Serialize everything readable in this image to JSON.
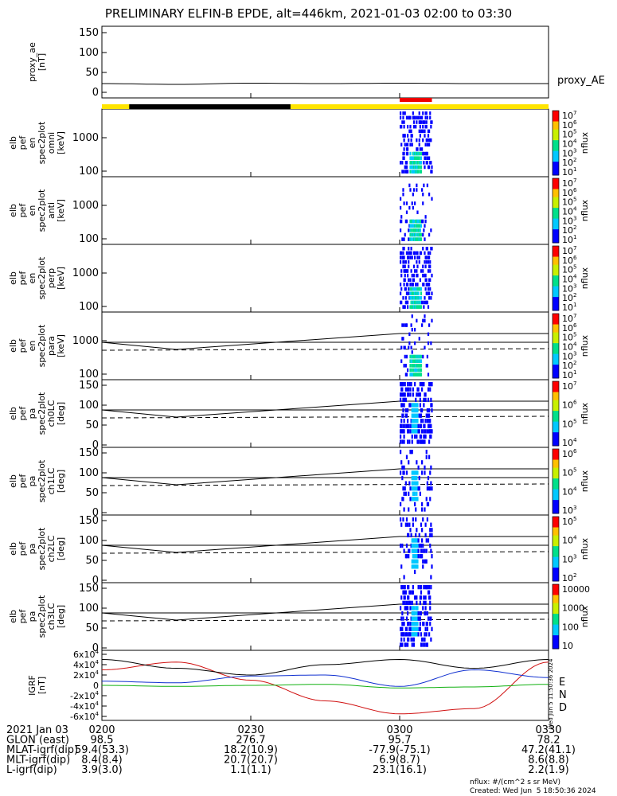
{
  "title": "PRELIMINARY ELFIN-B EPDE, alt=446km, 2021-01-03 02:00 to 03:30",
  "panels": [
    {
      "id": "proxy_ae",
      "ylabel": [
        "proxy_ae",
        "[nT]"
      ],
      "yticks": [
        "150",
        "100",
        "50",
        "0"
      ],
      "side_label": "proxy_AE"
    },
    {
      "id": "omni",
      "ylabel": [
        "elb",
        "pef",
        "en",
        "spec2plot",
        "omni",
        "[keV]"
      ],
      "yticks": [
        "1000",
        "100"
      ],
      "cbar_unit": "nflux",
      "cbar_ticks": [
        "10^7",
        "10^6",
        "10^5",
        "10^4",
        "10^3",
        "10^2",
        "10^1"
      ]
    },
    {
      "id": "anti",
      "ylabel": [
        "elb",
        "pef",
        "en",
        "spec2plot",
        "anti",
        "[keV]"
      ],
      "yticks": [
        "1000",
        "100"
      ],
      "cbar_unit": "nflux",
      "cbar_ticks": [
        "10^7",
        "10^6",
        "10^5",
        "10^4",
        "10^3",
        "10^2",
        "10^1"
      ]
    },
    {
      "id": "perp",
      "ylabel": [
        "elb",
        "pef",
        "en",
        "spec2plot",
        "perp",
        "[keV]"
      ],
      "yticks": [
        "1000",
        "100"
      ],
      "cbar_unit": "nflux",
      "cbar_ticks": [
        "10^7",
        "10^6",
        "10^5",
        "10^4",
        "10^3",
        "10^2",
        "10^1"
      ]
    },
    {
      "id": "para",
      "ylabel": [
        "elb",
        "pef",
        "en",
        "spec2plot",
        "para",
        "[keV]"
      ],
      "yticks": [
        "1000",
        "100"
      ],
      "cbar_unit": "nflux",
      "cbar_ticks": [
        "10^7",
        "10^6",
        "10^5",
        "10^4",
        "10^3",
        "10^2",
        "10^1"
      ]
    },
    {
      "id": "ch0LC",
      "ylabel": [
        "elb",
        "pef",
        "pa",
        "spec2plot",
        "ch0LC",
        "[deg]"
      ],
      "yticks": [
        "150",
        "100",
        "50",
        "0"
      ],
      "cbar_unit": "nflux",
      "cbar_ticks": [
        "10^7",
        "10^6",
        "10^5",
        "10^4"
      ]
    },
    {
      "id": "ch1LC",
      "ylabel": [
        "elb",
        "pef",
        "pa",
        "spec2plot",
        "ch1LC",
        "[deg]"
      ],
      "yticks": [
        "150",
        "100",
        "50",
        "0"
      ],
      "cbar_unit": "nflux",
      "cbar_ticks": [
        "10^6",
        "10^5",
        "10^4",
        "10^3"
      ]
    },
    {
      "id": "ch2LC",
      "ylabel": [
        "elb",
        "pef",
        "pa",
        "spec2plot",
        "ch2LC",
        "[deg]"
      ],
      "yticks": [
        "150",
        "100",
        "50",
        "0"
      ],
      "cbar_unit": "nflux",
      "cbar_ticks": [
        "10^5",
        "10^4",
        "10^3",
        "10^2"
      ]
    },
    {
      "id": "ch3LC",
      "ylabel": [
        "elb",
        "pef",
        "pa",
        "spec2plot",
        "ch3LC",
        "[deg]"
      ],
      "yticks": [
        "150",
        "100",
        "50",
        "0"
      ],
      "cbar_unit": "nflux",
      "cbar_ticks": [
        "10000",
        "1000",
        "100",
        "10"
      ]
    },
    {
      "id": "igrf",
      "ylabel": [
        "IGRF",
        "[nT]"
      ],
      "yticks": [
        "6x10^4",
        "4x10^4",
        "2x10^4",
        "0",
        "-2x10^4",
        "-4x10^4",
        "-6x10^4"
      ],
      "legend": [
        "E",
        "N",
        "D"
      ]
    }
  ],
  "igrf_legend_colors": {
    "D": "#d01010",
    "N": "#1030d0",
    "E": "#10b010"
  },
  "colors": {
    "proxy": "#000000",
    "bar_yellow": "#ffe400",
    "bar_black": "#000000",
    "bar_red": "#ee0000"
  },
  "footer": {
    "rows": [
      {
        "label": "2021 Jan 03",
        "values": [
          "0200",
          "0230",
          "0300",
          "0330"
        ]
      },
      {
        "label": "GLON (east)",
        "values": [
          "98.5",
          "276.7",
          "95.7",
          "78.2"
        ]
      },
      {
        "label": "MLAT-igrf(dip)",
        "values": [
          "59.4(53.3)",
          "18.2(10.9)",
          "-77.9(-75.1)",
          "47.2(41.1)"
        ]
      },
      {
        "label": "MLT-igrf(dip)",
        "values": [
          "8.4(8.4)",
          "20.7(20.7)",
          "6.9(8.7)",
          "8.6(8.8)"
        ]
      },
      {
        "label": "L-igrf(dip)",
        "values": [
          "3.9(3.0)",
          "1.1(1.1)",
          "23.1(16.1)",
          "2.2(1.9)"
        ]
      }
    ],
    "unit_note": "nflux: #/(cm^2 s sr MeV)",
    "created": "Created: Wed Jun  5 18:50:36 2024",
    "side_stamp": "Wed Jun  5 11:50:36 2024"
  },
  "chart_data": {
    "type": "line",
    "x_range": [
      "02:00",
      "03:30"
    ],
    "x_ticks": [
      "0200",
      "0230",
      "0300",
      "0330"
    ],
    "series": [
      {
        "panel": "proxy_ae",
        "name": "proxy_AE",
        "x": [
          "02:00",
          "02:15",
          "02:30",
          "02:45",
          "03:00",
          "03:15",
          "03:30"
        ],
        "values": [
          22,
          20,
          23,
          22,
          23,
          22,
          22
        ]
      },
      {
        "panel": "igrf",
        "name": "D",
        "x": [
          "02:00",
          "02:15",
          "02:30",
          "02:45",
          "03:00",
          "03:15",
          "03:30"
        ],
        "values": [
          30000,
          45000,
          10000,
          -30000,
          -55000,
          -45000,
          45000
        ]
      },
      {
        "panel": "igrf",
        "name": "N",
        "x": [
          "02:00",
          "02:15",
          "02:30",
          "02:45",
          "03:00",
          "03:15",
          "03:30"
        ],
        "values": [
          8000,
          5000,
          18000,
          20000,
          -2000,
          30000,
          15000
        ]
      },
      {
        "panel": "igrf",
        "name": "E",
        "x": [
          "02:00",
          "02:15",
          "02:30",
          "02:45",
          "03:00",
          "03:15",
          "03:30"
        ],
        "values": [
          0,
          -2000,
          0,
          2000,
          -5000,
          -3000,
          2000
        ]
      },
      {
        "panel": "igrf",
        "name": "total",
        "x": [
          "02:00",
          "02:15",
          "02:30",
          "02:45",
          "03:00",
          "03:15",
          "03:30"
        ],
        "values": [
          50000,
          33000,
          20000,
          40000,
          50000,
          33000,
          50000
        ]
      }
    ]
  }
}
